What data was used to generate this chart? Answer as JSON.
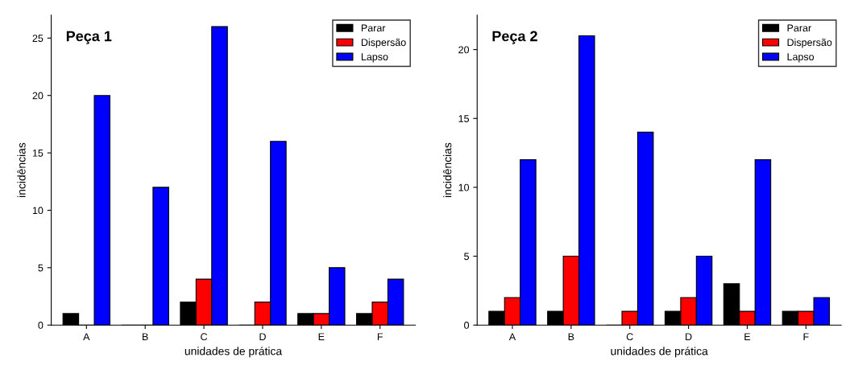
{
  "chart_data": [
    {
      "type": "bar",
      "title": "Peça 1",
      "xlabel": "unidades de prática",
      "ylabel": "incidências",
      "categories": [
        "A",
        "B",
        "C",
        "D",
        "E",
        "F"
      ],
      "ylim": [
        0,
        27
      ],
      "yticks": [
        0,
        5,
        10,
        15,
        20,
        25
      ],
      "legend": "top right",
      "grid": false,
      "series": [
        {
          "name": "Parar",
          "color": "#000000",
          "values": [
            1,
            0,
            2,
            0,
            1,
            1
          ]
        },
        {
          "name": "Dispersão",
          "color": "#ff0000",
          "values": [
            0,
            0,
            4,
            2,
            1,
            2
          ]
        },
        {
          "name": "Lapso",
          "color": "#0000ff",
          "values": [
            20,
            12,
            26,
            16,
            5,
            4
          ]
        }
      ]
    },
    {
      "type": "bar",
      "title": "Peça 2",
      "xlabel": "unidades de prática",
      "ylabel": "incidências",
      "categories": [
        "A",
        "B",
        "C",
        "D",
        "E",
        "F"
      ],
      "ylim": [
        0,
        22.5
      ],
      "yticks": [
        0,
        5,
        10,
        15,
        20
      ],
      "legend": "top right",
      "grid": false,
      "series": [
        {
          "name": "Parar",
          "color": "#000000",
          "values": [
            1,
            1,
            0,
            1,
            3,
            1
          ]
        },
        {
          "name": "Dispersão",
          "color": "#ff0000",
          "values": [
            2,
            5,
            1,
            2,
            1,
            1
          ]
        },
        {
          "name": "Lapso",
          "color": "#0000ff",
          "values": [
            12,
            21,
            14,
            5,
            12,
            2
          ]
        }
      ]
    }
  ]
}
